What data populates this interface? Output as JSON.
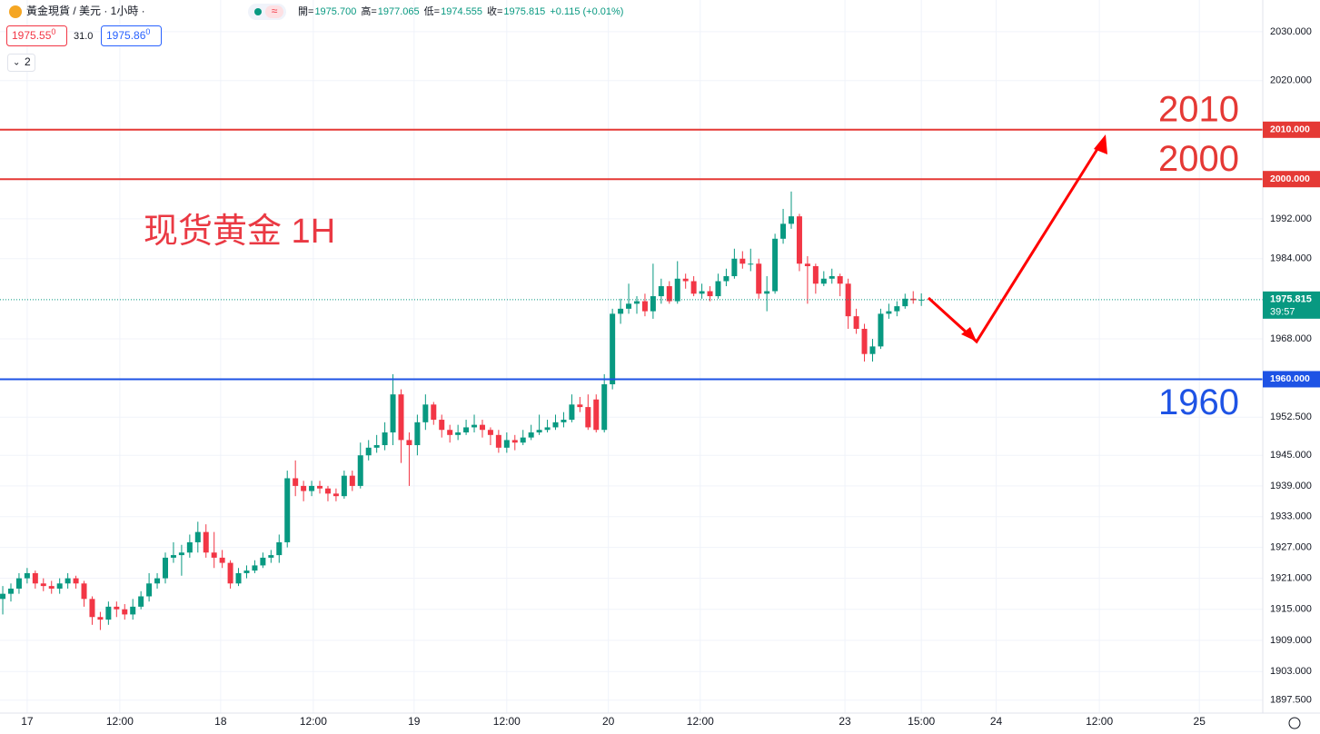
{
  "header": {
    "symbol": "黃金現貨 / 美元 · 1小時 ·",
    "quote": [
      {
        "label": "開=",
        "value": "1975.700"
      },
      {
        "label": "高=",
        "value": "1977.065"
      },
      {
        "label": "低=",
        "value": "1974.555"
      },
      {
        "label": "收=",
        "value": "1975.815"
      }
    ],
    "change": "+0.115 (+0.01%)",
    "bid": "1975.55",
    "bid_sup": "0",
    "spread": "31.0",
    "ask": "1975.86",
    "ask_sup": "0",
    "indicators": "2"
  },
  "chart_data": {
    "type": "candlestick",
    "annotation": "现货黄金 1H",
    "log_scale": true,
    "grid": true,
    "up_color": "#089981",
    "down_color": "#f23645",
    "xlim": [
      -0.34,
      155
    ],
    "ylim": [
      1895.9,
      2036.5
    ],
    "xticks": [
      {
        "value": 3.0,
        "label": "17"
      },
      {
        "value": 14.4,
        "label": "12:00"
      },
      {
        "value": 26.8,
        "label": "18"
      },
      {
        "value": 38.2,
        "label": "12:00"
      },
      {
        "value": 50.6,
        "label": "19"
      },
      {
        "value": 62.0,
        "label": "12:00"
      },
      {
        "value": 74.5,
        "label": "20"
      },
      {
        "value": 85.8,
        "label": "12:00"
      },
      {
        "value": 103.6,
        "label": "23"
      },
      {
        "value": 113.0,
        "label": "15:00"
      },
      {
        "value": 122.2,
        "label": "24"
      },
      {
        "value": 134.9,
        "label": "12:00"
      },
      {
        "value": 147.2,
        "label": "25"
      }
    ],
    "yticks": [
      {
        "value": 2030,
        "label": "2030.000"
      },
      {
        "value": 2020,
        "label": "2020.000"
      },
      {
        "value": 1992,
        "label": "1992.000"
      },
      {
        "value": 1984,
        "label": "1984.000"
      },
      {
        "value": 1968,
        "label": "1968.000"
      },
      {
        "value": 1952.5,
        "label": "1952.500"
      },
      {
        "value": 1945,
        "label": "1945.000"
      },
      {
        "value": 1939,
        "label": "1939.000"
      },
      {
        "value": 1933,
        "label": "1933.000"
      },
      {
        "value": 1927,
        "label": "1927.000"
      },
      {
        "value": 1921,
        "label": "1921.000"
      },
      {
        "value": 1915,
        "label": "1915.000"
      },
      {
        "value": 1909,
        "label": "1909.000"
      },
      {
        "value": 1903,
        "label": "1903.000"
      },
      {
        "value": 1897.5,
        "label": "1897.500"
      }
    ],
    "hlines": [
      {
        "value": 2010,
        "axis_label": "2010.000",
        "color": "#e53935"
      },
      {
        "value": 2000,
        "axis_label": "2000.000",
        "color": "#e53935"
      },
      {
        "value": 1960,
        "axis_label": "1960.000",
        "color": "#1e53e5"
      }
    ],
    "last": {
      "value": 1975.815,
      "countdown": "39:57",
      "color": "#089981"
    },
    "ohlc": [
      [
        1917,
        1919.5,
        1914,
        1918
      ],
      [
        1918,
        1920,
        1916.5,
        1919
      ],
      [
        1919,
        1922,
        1918,
        1921
      ],
      [
        1921,
        1923,
        1920,
        1922
      ],
      [
        1922,
        1922.5,
        1919,
        1920
      ],
      [
        1920,
        1921,
        1918.5,
        1919.5
      ],
      [
        1919.5,
        1920.5,
        1918,
        1919
      ],
      [
        1919,
        1921,
        1918,
        1920
      ],
      [
        1920,
        1922,
        1919,
        1921
      ],
      [
        1921,
        1921.5,
        1919,
        1920
      ],
      [
        1920,
        1920.5,
        1915.5,
        1917
      ],
      [
        1917,
        1917.5,
        1912,
        1913.5
      ],
      [
        1913.5,
        1914.5,
        1911,
        1913
      ],
      [
        1913,
        1916.5,
        1912,
        1915.5
      ],
      [
        1915.5,
        1916.5,
        1913.5,
        1915
      ],
      [
        1915,
        1916,
        1913,
        1914
      ],
      [
        1914,
        1917,
        1913,
        1915.5
      ],
      [
        1915.5,
        1918.5,
        1915,
        1917.5
      ],
      [
        1917.5,
        1922,
        1916.5,
        1920
      ],
      [
        1920,
        1922,
        1919,
        1921
      ],
      [
        1921,
        1926,
        1920,
        1925
      ],
      [
        1925,
        1928,
        1924,
        1925.5
      ],
      [
        1925.5,
        1927.5,
        1921.5,
        1926
      ],
      [
        1926,
        1929.5,
        1925,
        1928
      ],
      [
        1928,
        1932,
        1926,
        1930
      ],
      [
        1930,
        1931.5,
        1925,
        1926
      ],
      [
        1926,
        1930,
        1923,
        1925
      ],
      [
        1925,
        1926.5,
        1923,
        1924
      ],
      [
        1924,
        1924.5,
        1919,
        1920
      ],
      [
        1920,
        1923,
        1919.5,
        1922
      ],
      [
        1922,
        1923.5,
        1921,
        1922.5
      ],
      [
        1922.5,
        1924.5,
        1922,
        1923.5
      ],
      [
        1923.5,
        1926,
        1923,
        1925
      ],
      [
        1925,
        1926.5,
        1924,
        1925.5
      ],
      [
        1925.5,
        1929.5,
        1924,
        1928
      ],
      [
        1928,
        1942,
        1927,
        1940.5
      ],
      [
        1940.5,
        1944,
        1937,
        1939
      ],
      [
        1939,
        1940,
        1936,
        1938
      ],
      [
        1938,
        1940,
        1937,
        1939
      ],
      [
        1939,
        1940,
        1937.5,
        1938.5
      ],
      [
        1938.5,
        1939,
        1936,
        1937.5
      ],
      [
        1937.5,
        1938.5,
        1936,
        1937
      ],
      [
        1937,
        1942,
        1936.5,
        1941
      ],
      [
        1941,
        1942,
        1938,
        1939
      ],
      [
        1939,
        1947.5,
        1938.5,
        1945
      ],
      [
        1945,
        1948,
        1944,
        1946.5
      ],
      [
        1946.5,
        1949,
        1945.5,
        1947
      ],
      [
        1947,
        1951.5,
        1946,
        1949.5
      ],
      [
        1949.5,
        1961,
        1947,
        1957
      ],
      [
        1957,
        1958,
        1943.5,
        1948
      ],
      [
        1948,
        1949.5,
        1939,
        1947
      ],
      [
        1947,
        1953,
        1945,
        1951.5
      ],
      [
        1951.5,
        1957,
        1950,
        1955
      ],
      [
        1955,
        1955.5,
        1951,
        1952
      ],
      [
        1952,
        1953,
        1948.5,
        1950
      ],
      [
        1950,
        1951,
        1947.5,
        1949
      ],
      [
        1949,
        1951,
        1948,
        1949.5
      ],
      [
        1949.5,
        1952,
        1949,
        1950.5
      ],
      [
        1950.5,
        1953,
        1949.5,
        1951
      ],
      [
        1951,
        1952,
        1948.5,
        1950
      ],
      [
        1950,
        1950.5,
        1947,
        1949
      ],
      [
        1949,
        1950,
        1945.5,
        1946.5
      ],
      [
        1946.5,
        1949.5,
        1945.5,
        1948
      ],
      [
        1948,
        1949,
        1946,
        1947.5
      ],
      [
        1947.5,
        1950,
        1947,
        1948.5
      ],
      [
        1948.5,
        1951,
        1948,
        1949.5
      ],
      [
        1949.5,
        1953,
        1949,
        1950
      ],
      [
        1950,
        1952,
        1949.5,
        1950.5
      ],
      [
        1950.5,
        1953,
        1950,
        1951.5
      ],
      [
        1951.5,
        1953.5,
        1950.5,
        1952
      ],
      [
        1952,
        1957,
        1951.5,
        1955
      ],
      [
        1955,
        1956.5,
        1953.5,
        1954.5
      ],
      [
        1954.5,
        1957,
        1950,
        1950.5
      ],
      [
        1956,
        1957,
        1949.5,
        1950
      ],
      [
        1950,
        1961,
        1949.5,
        1959
      ],
      [
        1959,
        1974,
        1958,
        1973
      ],
      [
        1973,
        1976,
        1971,
        1974
      ],
      [
        1974,
        1979,
        1973,
        1975
      ],
      [
        1975,
        1976.5,
        1973,
        1975.5
      ],
      [
        1975.5,
        1977,
        1972.5,
        1973.5
      ],
      [
        1973.5,
        1983,
        1972,
        1976.5
      ],
      [
        1976.5,
        1980,
        1975,
        1978.5
      ],
      [
        1978.5,
        1979.5,
        1975,
        1975.5
      ],
      [
        1975.5,
        1983.5,
        1975,
        1980
      ],
      [
        1980,
        1981,
        1978,
        1979.5
      ],
      [
        1979.5,
        1980.5,
        1976.5,
        1977
      ],
      [
        1977,
        1979,
        1976,
        1977.5
      ],
      [
        1977.5,
        1978.5,
        1975.5,
        1976.5
      ],
      [
        1976.5,
        1981,
        1976,
        1979.5
      ],
      [
        1979.5,
        1982,
        1978.5,
        1980.5
      ],
      [
        1980.5,
        1986,
        1980,
        1984
      ],
      [
        1984,
        1985.5,
        1982,
        1983
      ],
      [
        1983,
        1986,
        1981.5,
        1983
      ],
      [
        1983,
        1984,
        1976,
        1977
      ],
      [
        1977,
        1980.5,
        1973.5,
        1977.5
      ],
      [
        1977.5,
        1989,
        1977,
        1988
      ],
      [
        1988,
        1994,
        1987,
        1991
      ],
      [
        1991,
        1997.5,
        1990,
        1992.5
      ],
      [
        1992.5,
        1993,
        1981.5,
        1983
      ],
      [
        1983,
        1984.5,
        1975,
        1982.5
      ],
      [
        1982.5,
        1983,
        1977,
        1979
      ],
      [
        1979,
        1981.5,
        1978.5,
        1980
      ],
      [
        1980,
        1982,
        1979,
        1980.5
      ],
      [
        1980.5,
        1981,
        1976.5,
        1979
      ],
      [
        1979,
        1980,
        1970,
        1972.5
      ],
      [
        1972.5,
        1974,
        1969,
        1970
      ],
      [
        1970,
        1971,
        1963.5,
        1965
      ],
      [
        1965,
        1968,
        1963.5,
        1966.5
      ],
      [
        1966.5,
        1974,
        1966,
        1973
      ],
      [
        1973,
        1975,
        1972,
        1973.5
      ],
      [
        1973.5,
        1975.5,
        1972.5,
        1974.5
      ],
      [
        1974.5,
        1977,
        1974,
        1976
      ],
      [
        1976,
        1977.5,
        1975,
        1975.7
      ],
      [
        1975.7,
        1977.065,
        1974.555,
        1975.815
      ]
    ]
  }
}
